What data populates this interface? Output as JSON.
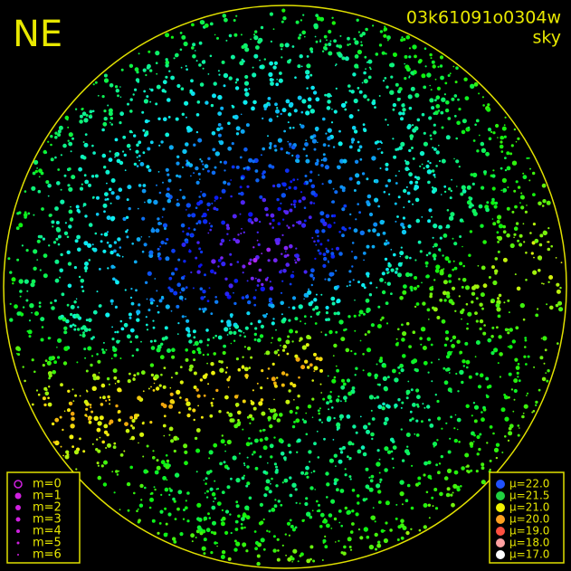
{
  "header": {
    "direction": "NE",
    "image_id": "03k61091o0304w",
    "mode": "sky"
  },
  "legend_magnitude": {
    "items": [
      "m=0",
      "m=1",
      "m=2",
      "m=3",
      "m=4",
      "m=5",
      "m=6"
    ],
    "color": "#d020e0"
  },
  "legend_brightness": {
    "items": [
      {
        "label": "μ=22.0",
        "color": "#2050ff"
      },
      {
        "label": "μ=21.5",
        "color": "#20d040"
      },
      {
        "label": "μ=21.0",
        "color": "#f0f000"
      },
      {
        "label": "μ=20.0",
        "color": "#ffa020"
      },
      {
        "label": "μ=19.0",
        "color": "#ff5040"
      },
      {
        "label": "μ=18.0",
        "color": "#ffa0a0"
      },
      {
        "label": "μ=17.0",
        "color": "#ffffff"
      }
    ]
  }
}
